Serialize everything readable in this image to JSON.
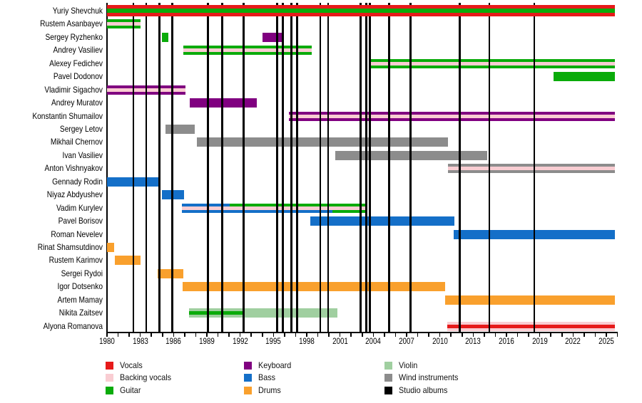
{
  "chart_data": {
    "type": "timeline",
    "x_axis": {
      "start": 1980,
      "end": 2026,
      "tick_interval": 1,
      "label_interval": 3,
      "labels": [
        "1980",
        "1983",
        "1986",
        "1989",
        "1992",
        "1995",
        "1998",
        "2001",
        "2004",
        "2007",
        "2010",
        "2013",
        "2016",
        "2019",
        "2022",
        "2025"
      ]
    },
    "colors": {
      "vocals": "#e61a1a",
      "backing_vocals": "#f9cdd2",
      "guitar": "#0aab0a",
      "keyboard": "#800080",
      "bass": "#146fc8",
      "drums": "#f9a02d",
      "violin": "#a0cfa0",
      "wind": "#8c8c8c",
      "albums": "#000000"
    },
    "members": [
      {
        "name": "Yuriy Shevchuk",
        "on_top": true,
        "bars": [
          {
            "from": 1980,
            "to": 2025.75,
            "stripes": [
              "vocals",
              "guitar",
              "vocals"
            ]
          }
        ]
      },
      {
        "name": "Rustem Asanbayev",
        "bars": [
          {
            "from": 1980,
            "to": 1983.05,
            "stripes": [
              "guitar",
              "backing_vocals",
              "guitar"
            ]
          }
        ]
      },
      {
        "name": "Sergey Ryzhenko",
        "bars": [
          {
            "from": 1984.95,
            "to": 1985.55,
            "color": "guitar"
          },
          {
            "from": 1994.0,
            "to": 1995.85,
            "color": "keyboard"
          }
        ]
      },
      {
        "name": "Andrey Vasiliev",
        "bars": [
          {
            "from": 1986.85,
            "to": 1998.45,
            "stripes": [
              "guitar",
              "backing_vocals",
              "guitar"
            ]
          }
        ]
      },
      {
        "name": "Alexey Fedichev",
        "bars": [
          {
            "from": 2003.75,
            "to": 2025.75,
            "stripes": [
              "guitar",
              "backing_vocals",
              "guitar"
            ]
          }
        ]
      },
      {
        "name": "Pavel Dodonov",
        "bars": [
          {
            "from": 2020.25,
            "to": 2025.75,
            "color": "guitar"
          }
        ]
      },
      {
        "name": "Vladimir Sigachov",
        "bars": [
          {
            "from": 1980,
            "to": 1987.05,
            "stripes": [
              "keyboard",
              "backing_vocals",
              "keyboard"
            ]
          }
        ]
      },
      {
        "name": "Andrey Muratov",
        "bars": [
          {
            "from": 1987.45,
            "to": 1993.5,
            "color": "keyboard"
          }
        ]
      },
      {
        "name": "Konstantin Shumailov",
        "bars": [
          {
            "from": 1996.4,
            "to": 2025.75,
            "stripes": [
              "keyboard",
              "backing_vocals",
              "keyboard"
            ]
          }
        ]
      },
      {
        "name": "Sergey Letov",
        "bars": [
          {
            "from": 1985.25,
            "to": 1987.9,
            "color": "wind"
          }
        ]
      },
      {
        "name": "Mikhail Chernov",
        "bars": [
          {
            "from": 1988.1,
            "to": 2010.75,
            "color": "wind"
          }
        ]
      },
      {
        "name": "Ivan Vasiliev",
        "bars": [
          {
            "from": 2000.55,
            "to": 2014.25,
            "color": "wind"
          }
        ]
      },
      {
        "name": "Anton Vishnyakov",
        "bars": [
          {
            "from": 2010.75,
            "to": 2025.75,
            "stripes": [
              "wind",
              "backing_vocals",
              "wind"
            ]
          }
        ]
      },
      {
        "name": "Gennady Rodin",
        "bars": [
          {
            "from": 1980,
            "to": 1984.8,
            "color": "bass"
          }
        ]
      },
      {
        "name": "Niyaz Abdyushev",
        "bars": [
          {
            "from": 1984.95,
            "to": 1986.95,
            "color": "bass"
          }
        ]
      },
      {
        "name": "Vadim Kurylev",
        "bars": [
          {
            "from": 1986.75,
            "to": 1991.05,
            "stripes": [
              "bass",
              "backing_vocals",
              "bass"
            ]
          },
          {
            "from": 1991.05,
            "to": 2000.3,
            "stripes": [
              "guitar",
              "backing_vocals",
              "bass"
            ]
          },
          {
            "from": 2000.3,
            "to": 2003.35,
            "stripes": [
              "guitar",
              "backing_vocals",
              "guitar"
            ]
          }
        ]
      },
      {
        "name": "Pavel Borisov",
        "bars": [
          {
            "from": 1998.35,
            "to": 2011.3,
            "color": "bass"
          }
        ]
      },
      {
        "name": "Roman Nevelev",
        "bars": [
          {
            "from": 2011.25,
            "to": 2025.75,
            "color": "bass"
          }
        ]
      },
      {
        "name": "Rinat Shamsutdinov",
        "bars": [
          {
            "from": 1980,
            "to": 1980.65,
            "color": "drums"
          }
        ]
      },
      {
        "name": "Rustem Karimov",
        "bars": [
          {
            "from": 1980.7,
            "to": 1983.0,
            "color": "drums"
          }
        ]
      },
      {
        "name": "Sergei Rydoi",
        "bars": [
          {
            "from": 1984.55,
            "to": 1986.85,
            "color": "drums"
          }
        ]
      },
      {
        "name": "Igor Dotsenko",
        "bars": [
          {
            "from": 1986.8,
            "to": 2010.45,
            "color": "drums"
          }
        ]
      },
      {
        "name": "Artem Mamay",
        "bars": [
          {
            "from": 2010.45,
            "to": 2025.75,
            "color": "drums"
          }
        ]
      },
      {
        "name": "Nikita Zaitsev",
        "bars": [
          {
            "from": 1987.4,
            "to": 1992.3,
            "stripes": [
              "violin",
              "guitar",
              "violin"
            ]
          },
          {
            "from": 1992.3,
            "to": 2000.75,
            "color": "violin"
          }
        ]
      },
      {
        "name": "Alyona Romanova",
        "bars": [
          {
            "from": 2010.65,
            "to": 2025.75,
            "stripes": [
              "backing_vocals",
              "vocals",
              "backing_vocals"
            ]
          }
        ]
      }
    ],
    "albums_years": [
      1982.38,
      1983.54,
      1984.74,
      1985.87,
      1989.11,
      1990.37,
      1992.32,
      1995.32,
      1995.86,
      1996.6,
      1997.14,
      1999.22,
      1999.93,
      2002.84,
      2003.35,
      2003.7,
      2005.41,
      2007.34,
      2011.8,
      2014.45,
      2018.52
    ],
    "legend": [
      [
        {
          "label": "Vocals",
          "color": "vocals"
        },
        {
          "label": "Backing vocals",
          "color": "backing_vocals"
        },
        {
          "label": "Guitar",
          "color": "guitar"
        }
      ],
      [
        {
          "label": "Keyboard",
          "color": "keyboard"
        },
        {
          "label": "Bass",
          "color": "bass"
        },
        {
          "label": "Drums",
          "color": "drums"
        }
      ],
      [
        {
          "label": "Violin",
          "color": "violin"
        },
        {
          "label": "Wind instruments",
          "color": "wind"
        },
        {
          "label": "Studio albums",
          "color": "albums"
        }
      ]
    ]
  }
}
